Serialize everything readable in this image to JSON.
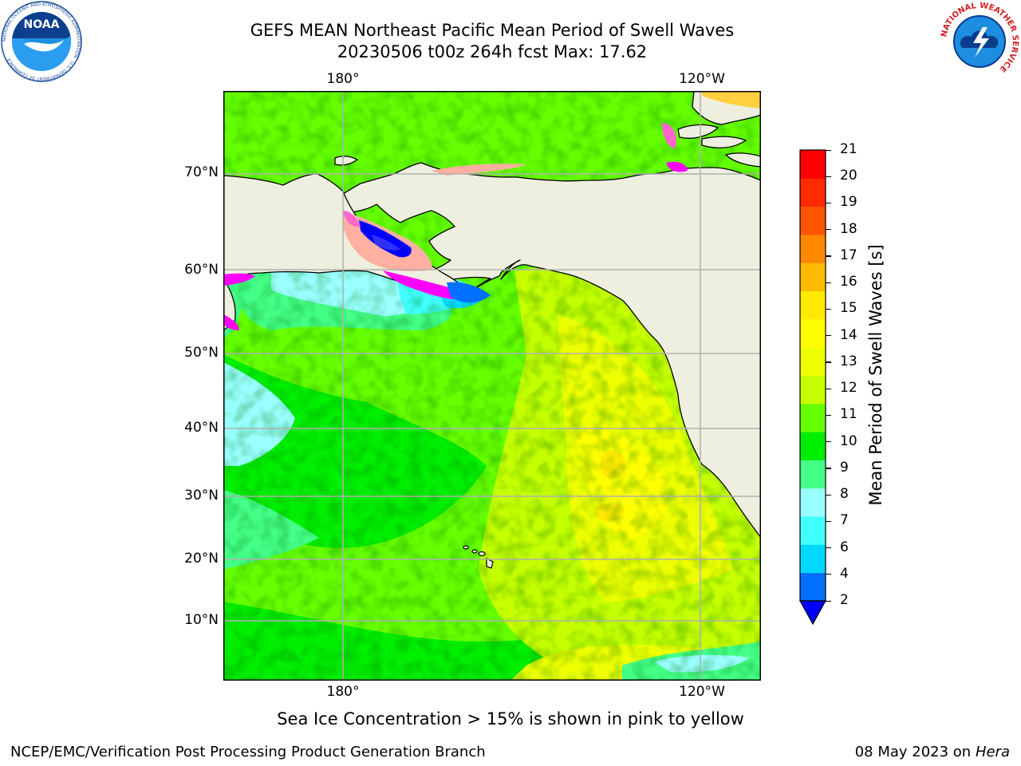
{
  "header": {
    "title_line1": "GEFS MEAN Northeast Pacific Mean Period of Swell Waves",
    "title_line2": "20230506 t00z 264h fcst   Max: 17.62"
  },
  "logos": {
    "noaa": {
      "text": "NOAA",
      "ring_text": "NATIONAL OCEANIC AND ATMOSPHERIC ADMINISTRATION · U.S. DEPARTMENT OF COMMERCE"
    },
    "nws": {
      "ring_text": "NATIONAL WEATHER SERVICE"
    }
  },
  "map": {
    "region": "Northeast Pacific",
    "lon_labels_top": [
      "180°",
      "120°W"
    ],
    "lon_labels_bottom": [
      "180°",
      "120°W"
    ],
    "lat_labels": [
      "70°N",
      "60°N",
      "50°N",
      "40°N",
      "30°N",
      "20°N",
      "10°N"
    ],
    "colors": {
      "land": "#efefdf",
      "coast": "#000000",
      "grid": "#b0b0b0",
      "ice": [
        "#ff00ff",
        "#ff66cc",
        "#ffb0a0",
        "#ffd040",
        "#0000ff"
      ]
    }
  },
  "colorbar": {
    "label": "Mean Period of Swell Waves [s]",
    "ticks": [
      "2",
      "4",
      "6",
      "7",
      "8",
      "9",
      "10",
      "11",
      "12",
      "13",
      "14",
      "15",
      "16",
      "17",
      "18",
      "19",
      "20",
      "21"
    ],
    "colors": [
      "#0070ff",
      "#00d8ff",
      "#40ffff",
      "#99ffff",
      "#44ff88",
      "#00ee00",
      "#66ff00",
      "#c6ff00",
      "#eeff00",
      "#ffff00",
      "#ffea00",
      "#ffbb00",
      "#ff8800",
      "#ff5500",
      "#ff2a00",
      "#ff0000"
    ],
    "under_color": "#0000ff"
  },
  "subtitle": "Sea Ice Concentration > 15% is shown in pink to yellow",
  "footer": {
    "left": "NCEP/EMC/Verification Post Processing Product Generation Branch",
    "date": "08 May 2023 on",
    "host": "Hera"
  }
}
